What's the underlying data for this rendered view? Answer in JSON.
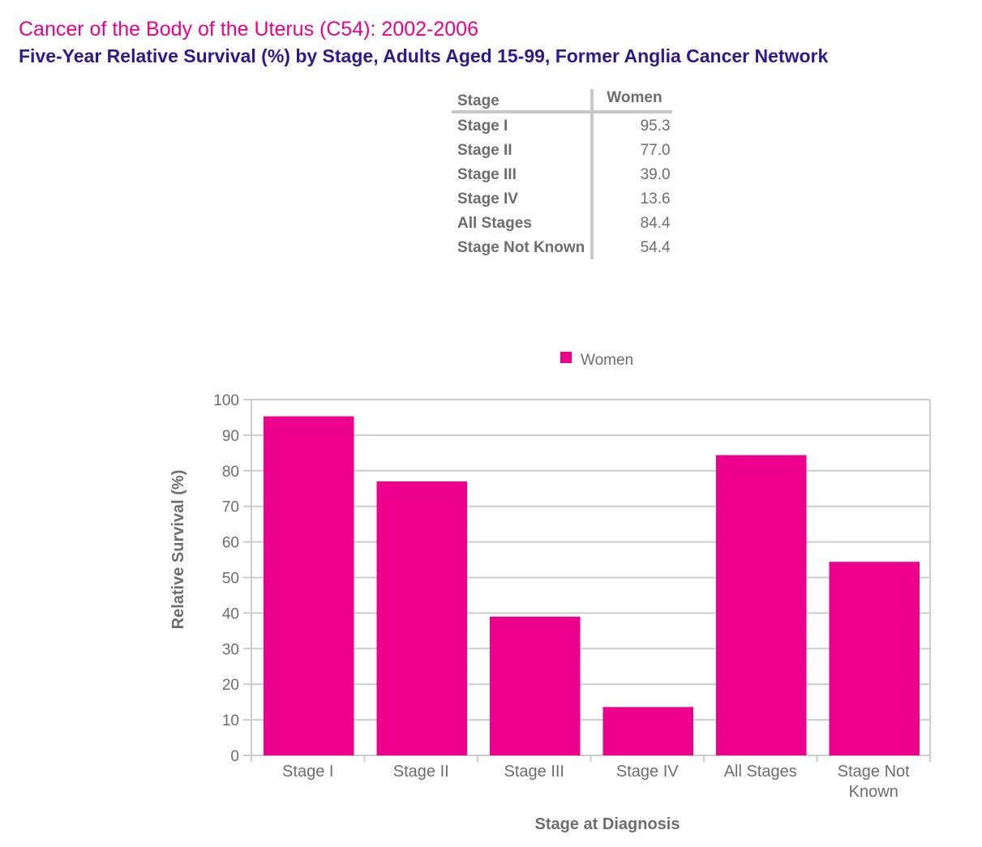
{
  "title": "Cancer of the Body of the Uterus (C54): 2002-2006",
  "subtitle": "Five-Year Relative Survival (%) by Stage, Adults Aged 15-99, Former Anglia Cancer Network",
  "table": {
    "headers": [
      "Stage",
      "Women"
    ],
    "rows": [
      [
        "Stage I",
        "95.3"
      ],
      [
        "Stage II",
        "77.0"
      ],
      [
        "Stage III",
        "39.0"
      ],
      [
        "Stage IV",
        "13.6"
      ],
      [
        "All Stages",
        "84.4"
      ],
      [
        "Stage Not Known",
        "54.4"
      ]
    ]
  },
  "chart_data": {
    "type": "bar",
    "categories": [
      "Stage I",
      "Stage II",
      "Stage III",
      "Stage IV",
      "All Stages",
      "Stage Not Known"
    ],
    "series": [
      {
        "name": "Women",
        "values": [
          95.3,
          77.0,
          39.0,
          13.6,
          84.4,
          54.4
        ],
        "color": "#ec008c"
      }
    ],
    "xlabel": "Stage at Diagnosis",
    "ylabel": "Relative Survival (%)",
    "ylim": [
      0,
      100
    ],
    "yticks": [
      0,
      10,
      20,
      30,
      40,
      50,
      60,
      70,
      80,
      90,
      100
    ],
    "grid": true,
    "legend": "top"
  }
}
